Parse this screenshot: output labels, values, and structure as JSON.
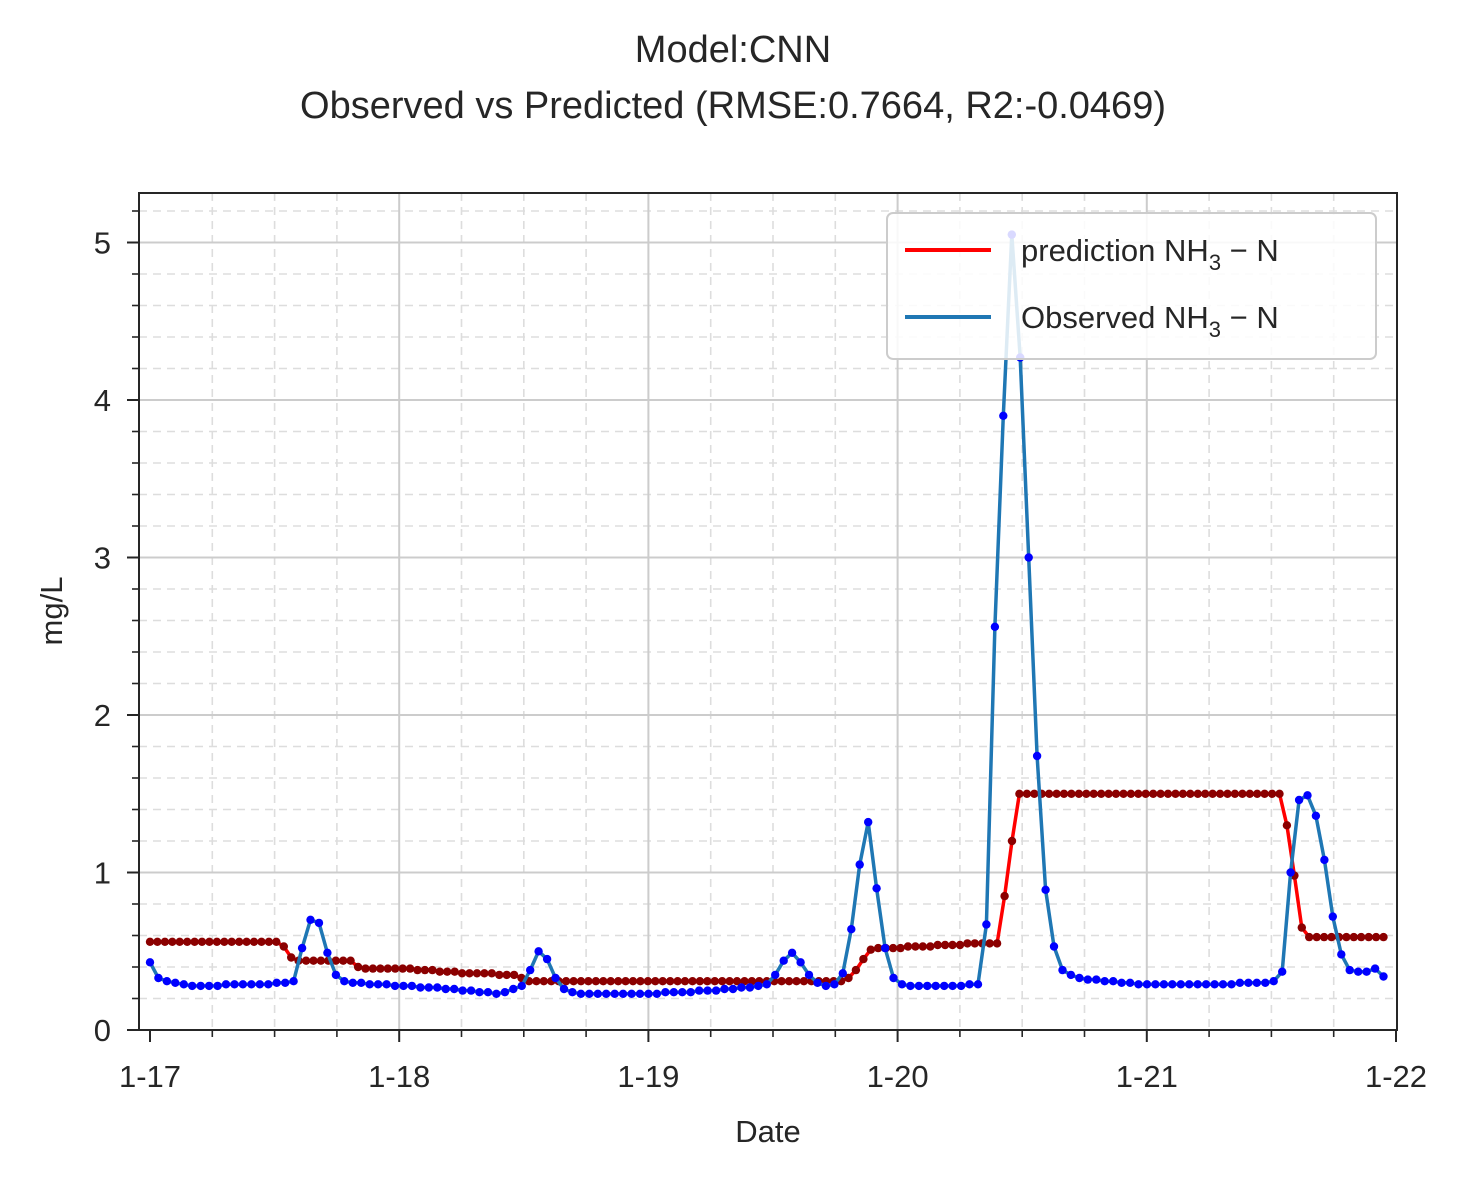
{
  "chart_data": {
    "type": "line",
    "title": "Model:CNN",
    "subtitle": "Observed vs Predicted (RMSE:0.7664, R2:-0.0469)",
    "xlabel": "Date",
    "ylabel": "mg/L",
    "xlim": [
      "1-17",
      "1-22"
    ],
    "ylim": [
      0,
      5.3
    ],
    "x_ticks": [
      "1-17",
      "1-18",
      "1-19",
      "1-20",
      "1-21",
      "1-22"
    ],
    "y_ticks": [
      0,
      1,
      2,
      3,
      4,
      5
    ],
    "grid": true,
    "minor_grid": true,
    "legend_position": "top-right",
    "series": [
      {
        "name": "prediction NH3-N",
        "legend_parts": [
          "prediction NH",
          "3",
          " − N"
        ],
        "color": "#ff0000",
        "marker_color": "#8b0000",
        "values": [
          0.56,
          0.56,
          0.56,
          0.56,
          0.56,
          0.56,
          0.56,
          0.56,
          0.56,
          0.56,
          0.56,
          0.56,
          0.56,
          0.56,
          0.56,
          0.56,
          0.56,
          0.56,
          0.53,
          0.46,
          0.44,
          0.44,
          0.44,
          0.44,
          0.44,
          0.44,
          0.44,
          0.44,
          0.4,
          0.39,
          0.39,
          0.39,
          0.39,
          0.39,
          0.39,
          0.39,
          0.38,
          0.38,
          0.38,
          0.37,
          0.37,
          0.37,
          0.36,
          0.36,
          0.36,
          0.36,
          0.36,
          0.35,
          0.35,
          0.35,
          0.33,
          0.31,
          0.31,
          0.31,
          0.31,
          0.31,
          0.31,
          0.31,
          0.31,
          0.31,
          0.31,
          0.31,
          0.31,
          0.31,
          0.31,
          0.31,
          0.31,
          0.31,
          0.31,
          0.31,
          0.31,
          0.31,
          0.31,
          0.31,
          0.31,
          0.31,
          0.31,
          0.31,
          0.31,
          0.31,
          0.31,
          0.31,
          0.31,
          0.31,
          0.31,
          0.31,
          0.31,
          0.31,
          0.31,
          0.31,
          0.31,
          0.31,
          0.31,
          0.31,
          0.33,
          0.38,
          0.45,
          0.51,
          0.52,
          0.52,
          0.52,
          0.52,
          0.53,
          0.53,
          0.53,
          0.53,
          0.54,
          0.54,
          0.54,
          0.54,
          0.55,
          0.55,
          0.55,
          0.55,
          0.55,
          0.85,
          1.2,
          1.5,
          1.5,
          1.5,
          1.5,
          1.5,
          1.5,
          1.5,
          1.5,
          1.5,
          1.5,
          1.5,
          1.5,
          1.5,
          1.5,
          1.5,
          1.5,
          1.5,
          1.5,
          1.5,
          1.5,
          1.5,
          1.5,
          1.5,
          1.5,
          1.5,
          1.5,
          1.5,
          1.5,
          1.5,
          1.5,
          1.5,
          1.5,
          1.5,
          1.5,
          1.5,
          1.5,
          1.3,
          0.98,
          0.65,
          0.59,
          0.59,
          0.59,
          0.59,
          0.59,
          0.59,
          0.59,
          0.59,
          0.59,
          0.59,
          0.59
        ]
      },
      {
        "name": "Observed NH3-N",
        "legend_parts": [
          "Observed NH",
          "3",
          " − N"
        ],
        "color": "#1f77b4",
        "marker_color": "#0000ff",
        "values": [
          0.43,
          0.33,
          0.31,
          0.3,
          0.29,
          0.28,
          0.28,
          0.28,
          0.28,
          0.29,
          0.29,
          0.29,
          0.29,
          0.29,
          0.29,
          0.3,
          0.3,
          0.31,
          0.52,
          0.7,
          0.68,
          0.49,
          0.35,
          0.31,
          0.3,
          0.3,
          0.29,
          0.29,
          0.29,
          0.28,
          0.28,
          0.28,
          0.27,
          0.27,
          0.27,
          0.26,
          0.26,
          0.25,
          0.25,
          0.24,
          0.24,
          0.23,
          0.24,
          0.26,
          0.28,
          0.38,
          0.5,
          0.45,
          0.33,
          0.26,
          0.24,
          0.23,
          0.23,
          0.23,
          0.23,
          0.23,
          0.23,
          0.23,
          0.23,
          0.23,
          0.23,
          0.24,
          0.24,
          0.24,
          0.24,
          0.25,
          0.25,
          0.25,
          0.26,
          0.26,
          0.27,
          0.27,
          0.28,
          0.29,
          0.35,
          0.44,
          0.49,
          0.43,
          0.35,
          0.3,
          0.28,
          0.29,
          0.36,
          0.64,
          1.05,
          1.32,
          0.9,
          0.52,
          0.33,
          0.29,
          0.28,
          0.28,
          0.28,
          0.28,
          0.28,
          0.28,
          0.28,
          0.29,
          0.29,
          0.67,
          2.56,
          3.9,
          5.05,
          4.27,
          3.0,
          1.74,
          0.89,
          0.53,
          0.38,
          0.35,
          0.33,
          0.32,
          0.32,
          0.31,
          0.31,
          0.3,
          0.3,
          0.29,
          0.29,
          0.29,
          0.29,
          0.29,
          0.29,
          0.29,
          0.29,
          0.29,
          0.29,
          0.29,
          0.29,
          0.3,
          0.3,
          0.3,
          0.3,
          0.31,
          0.37,
          1.0,
          1.46,
          1.49,
          1.36,
          1.08,
          0.72,
          0.48,
          0.38,
          0.37,
          0.37,
          0.39,
          0.34
        ]
      }
    ]
  }
}
